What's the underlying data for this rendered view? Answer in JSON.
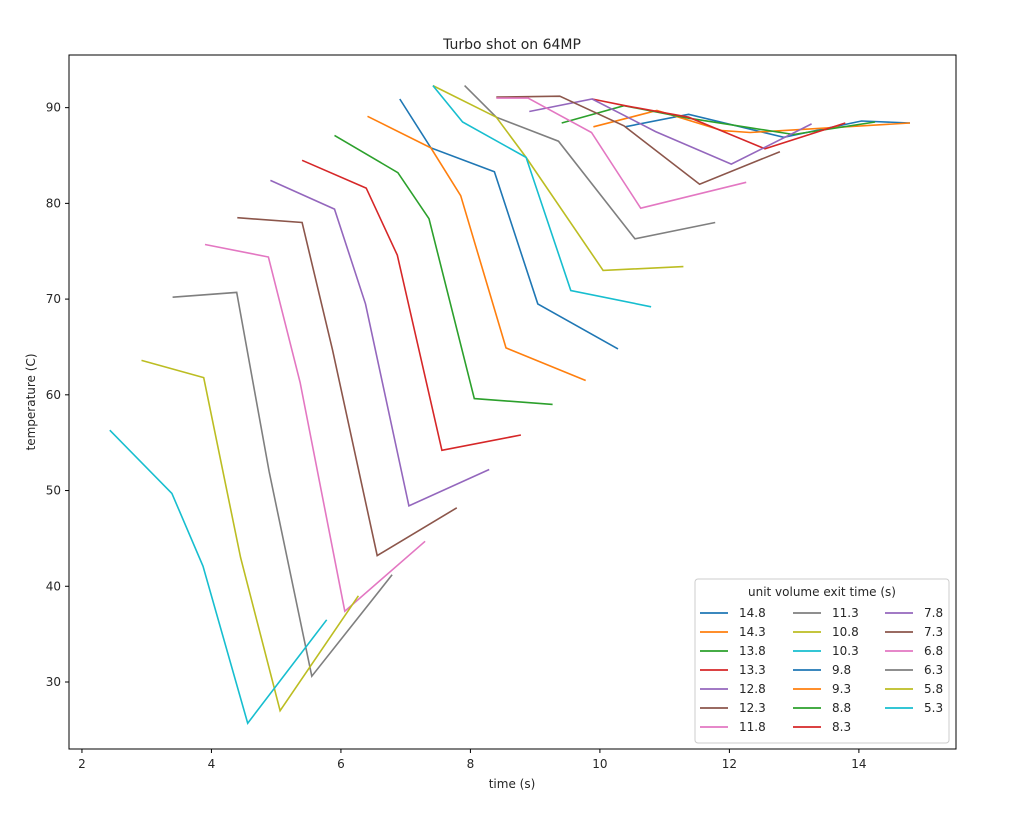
{
  "chart_data": {
    "type": "line",
    "title": "Turbo shot on 64MP",
    "xlabel": "time (s)",
    "ylabel": "temperature (C)",
    "xlim": [
      1.8,
      15.5
    ],
    "ylim": [
      23.0,
      95.5
    ],
    "xticks": [
      2,
      4,
      6,
      8,
      10,
      12,
      14
    ],
    "yticks": [
      30,
      40,
      50,
      60,
      70,
      80,
      90
    ],
    "grid": false,
    "legend": {
      "title": "unit volume exit time (s)",
      "position": "lower right",
      "ncol": 3
    },
    "series": [
      {
        "name": "14.8",
        "color": "#1f77b4",
        "x": [
          10.39,
          11.37,
          12.84,
          14.04,
          14.79
        ],
        "y": [
          88.0,
          89.3,
          86.9,
          88.6,
          88.4
        ]
      },
      {
        "name": "14.3",
        "color": "#ff7f0e",
        "x": [
          9.9,
          10.88,
          11.89,
          12.32,
          14.79
        ],
        "y": [
          88.0,
          89.7,
          87.6,
          87.4,
          88.4
        ]
      },
      {
        "name": "13.8",
        "color": "#2ca02c",
        "x": [
          9.41,
          10.37,
          11.37,
          12.99,
          14.25
        ],
        "y": [
          88.4,
          90.2,
          88.9,
          87.2,
          88.5
        ]
      },
      {
        "name": "13.3",
        "color": "#d62728",
        "x": [
          9.88,
          10.39,
          11.37,
          12.55,
          13.79
        ],
        "y": [
          90.9,
          90.2,
          89.0,
          85.7,
          88.4
        ]
      },
      {
        "name": "12.8",
        "color": "#9467bd",
        "x": [
          8.91,
          9.88,
          10.86,
          12.03,
          13.27
        ],
        "y": [
          89.6,
          90.9,
          87.5,
          84.1,
          88.3
        ]
      },
      {
        "name": "12.3",
        "color": "#8c564b",
        "x": [
          8.4,
          9.38,
          10.37,
          11.54,
          12.78
        ],
        "y": [
          91.1,
          91.2,
          88.1,
          82.0,
          85.4
        ]
      },
      {
        "name": "11.8",
        "color": "#e377c2",
        "x": [
          8.4,
          8.89,
          9.87,
          10.63,
          12.26
        ],
        "y": [
          91.0,
          91.0,
          87.4,
          79.5,
          82.2
        ]
      },
      {
        "name": "11.3",
        "color": "#7f7f7f",
        "x": [
          7.91,
          8.4,
          9.36,
          10.54,
          11.78
        ],
        "y": [
          92.3,
          89.0,
          86.5,
          76.3,
          78.0
        ]
      },
      {
        "name": "10.8",
        "color": "#bcbd22",
        "x": [
          7.42,
          8.4,
          8.86,
          10.05,
          11.29
        ],
        "y": [
          92.3,
          89.0,
          84.8,
          73.0,
          73.4
        ]
      },
      {
        "name": "10.3",
        "color": "#17becf",
        "x": [
          7.42,
          7.88,
          8.86,
          9.55,
          10.79
        ],
        "y": [
          92.3,
          88.5,
          84.8,
          70.9,
          69.2
        ]
      },
      {
        "name": "9.8",
        "color": "#1f77b4",
        "x": [
          6.91,
          7.39,
          8.37,
          9.04,
          10.28
        ],
        "y": [
          90.9,
          85.8,
          83.3,
          69.5,
          64.8
        ]
      },
      {
        "name": "9.3",
        "color": "#ff7f0e",
        "x": [
          6.41,
          7.39,
          7.85,
          8.55,
          9.78
        ],
        "y": [
          89.1,
          85.8,
          80.8,
          64.9,
          61.5
        ]
      },
      {
        "name": "8.8",
        "color": "#2ca02c",
        "x": [
          5.9,
          6.88,
          7.36,
          8.06,
          9.27
        ],
        "y": [
          87.1,
          83.2,
          78.4,
          59.6,
          59.0
        ]
      },
      {
        "name": "8.3",
        "color": "#d62728",
        "x": [
          5.4,
          6.39,
          6.87,
          7.56,
          8.78
        ],
        "y": [
          84.5,
          81.6,
          74.6,
          54.2,
          55.8
        ]
      },
      {
        "name": "7.8",
        "color": "#9467bd",
        "x": [
          4.91,
          5.9,
          6.38,
          7.05,
          8.29
        ],
        "y": [
          82.4,
          79.4,
          69.5,
          48.4,
          52.2
        ]
      },
      {
        "name": "7.3",
        "color": "#8c564b",
        "x": [
          4.4,
          5.4,
          5.87,
          6.56,
          7.79
        ],
        "y": [
          78.5,
          78.0,
          64.7,
          43.2,
          48.2
        ]
      },
      {
        "name": "6.8",
        "color": "#e377c2",
        "x": [
          3.9,
          4.88,
          5.37,
          6.06,
          7.3
        ],
        "y": [
          75.7,
          74.4,
          61.3,
          37.4,
          44.7
        ]
      },
      {
        "name": "6.3",
        "color": "#7f7f7f",
        "x": [
          3.4,
          4.39,
          4.89,
          5.55,
          6.79
        ],
        "y": [
          70.2,
          70.7,
          52.0,
          30.6,
          41.2
        ]
      },
      {
        "name": "5.8",
        "color": "#bcbd22",
        "x": [
          2.92,
          3.88,
          4.45,
          5.06,
          6.27
        ],
        "y": [
          63.6,
          61.8,
          43.0,
          27.0,
          39.0
        ]
      },
      {
        "name": "5.3",
        "color": "#17becf",
        "x": [
          2.43,
          3.39,
          3.87,
          4.56,
          5.78
        ],
        "y": [
          56.3,
          49.7,
          42.1,
          25.7,
          36.5
        ]
      }
    ]
  }
}
